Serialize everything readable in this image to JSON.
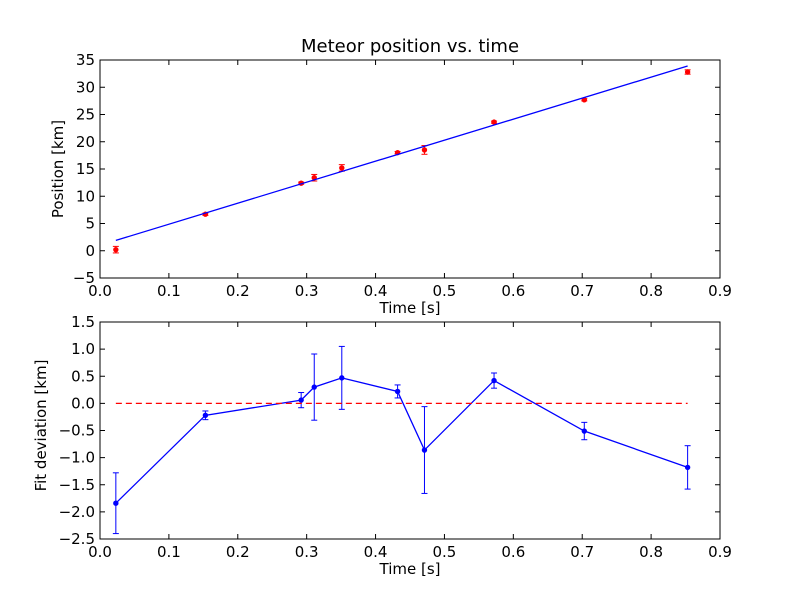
{
  "chart_data": [
    {
      "type": "scatter",
      "title": "Meteor position vs. time",
      "xlabel": "Time [s]",
      "ylabel": "Position [km]",
      "xlim": [
        0.0,
        0.9
      ],
      "ylim": [
        -5,
        35
      ],
      "xticks": [
        "0.0",
        "0.1",
        "0.2",
        "0.3",
        "0.4",
        "0.5",
        "0.6",
        "0.7",
        "0.8",
        "0.9"
      ],
      "yticks": [
        "−5",
        "0",
        "5",
        "10",
        "15",
        "20",
        "25",
        "30",
        "35"
      ],
      "grid": false,
      "series": [
        {
          "kind": "errorbar-points",
          "color": "#ff0000",
          "x": [
            0.023,
            0.153,
            0.292,
            0.311,
            0.351,
            0.432,
            0.471,
            0.572,
            0.703,
            0.853
          ],
          "y": [
            0.2,
            6.7,
            12.4,
            13.4,
            15.2,
            18.0,
            18.5,
            23.6,
            27.7,
            32.8
          ],
          "err": [
            0.6,
            0.2,
            0.2,
            0.6,
            0.6,
            0.2,
            0.8,
            0.2,
            0.2,
            0.4
          ]
        },
        {
          "kind": "fit-line",
          "color": "#0000ff",
          "x": [
            0.023,
            0.853
          ],
          "y": [
            1.9,
            33.9
          ]
        }
      ]
    },
    {
      "type": "line",
      "title": "",
      "xlabel": "Time [s]",
      "ylabel": "Fit deviation [km]",
      "xlim": [
        0.0,
        0.9
      ],
      "ylim": [
        -2.5,
        1.5
      ],
      "xticks": [
        "0.0",
        "0.1",
        "0.2",
        "0.3",
        "0.4",
        "0.5",
        "0.6",
        "0.7",
        "0.8",
        "0.9"
      ],
      "yticks": [
        "−2.5",
        "−2.0",
        "−1.5",
        "−1.0",
        "−0.5",
        "0.0",
        "0.5",
        "1.0",
        "1.5"
      ],
      "grid": false,
      "series": [
        {
          "kind": "errorbar-line",
          "color": "#0000ff",
          "x": [
            0.023,
            0.153,
            0.292,
            0.311,
            0.351,
            0.432,
            0.471,
            0.572,
            0.703,
            0.853
          ],
          "y": [
            -1.84,
            -0.22,
            0.06,
            0.3,
            0.47,
            0.22,
            -0.86,
            0.42,
            -0.51,
            -1.18
          ],
          "err": [
            0.56,
            0.08,
            0.14,
            0.61,
            0.58,
            0.12,
            0.8,
            0.14,
            0.16,
            0.4
          ]
        },
        {
          "kind": "reference-line",
          "color": "#ff0000",
          "style": "dashed",
          "x": [
            0.023,
            0.853
          ],
          "y": [
            0.0,
            0.0
          ]
        }
      ]
    }
  ]
}
